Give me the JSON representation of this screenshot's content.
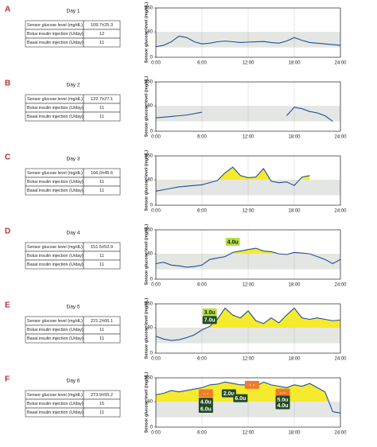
{
  "chart_data": [
    {
      "type": "line",
      "panel": "A",
      "title": "Day 1",
      "table": [
        [
          "Sensor glucose level (mg/dL)",
          "109.7±25.3"
        ],
        [
          "Bolus insulin injection (U/day)",
          "12"
        ],
        [
          "Basal insulin injection (U/day)",
          "11"
        ]
      ],
      "y_label": "Sensor glucose level (mg/dL)",
      "x": [
        0,
        1,
        2,
        3,
        4,
        5,
        6,
        7,
        8,
        9,
        10,
        11,
        12,
        13,
        14,
        15,
        16,
        17,
        18,
        19,
        20,
        21,
        22,
        23,
        24
      ],
      "series": [
        {
          "color": "#1f4e9c",
          "values": [
            75,
            85,
            110,
            150,
            140,
            110,
            95,
            100,
            110,
            115,
            110,
            105,
            108,
            110,
            112,
            105,
            100,
            115,
            140,
            120,
            105,
            100,
            95,
            90,
            85
          ]
        }
      ],
      "xlim": [
        0,
        24
      ],
      "xticks": [
        {
          "value": 0,
          "label": "0:00"
        },
        {
          "value": 6,
          "label": "6:00"
        },
        {
          "value": 12,
          "label": "12:00"
        },
        {
          "value": 18,
          "label": "18:00"
        },
        {
          "value": 24,
          "label": "24:00"
        }
      ],
      "ylim": [
        0,
        350
      ],
      "yticks": [
        0,
        180,
        350
      ],
      "target_range": [
        70,
        180
      ],
      "fill_above_target": false,
      "annotations": []
    },
    {
      "type": "line",
      "panel": "B",
      "title": "Day 2",
      "table": [
        [
          "Sensor glucose level (mg/dL)",
          "122.7±27.1"
        ],
        [
          "Bolus insulin injection (U/day)",
          "11"
        ],
        [
          "Basal insulin injection (U/day)",
          "11"
        ]
      ],
      "y_label": "Sensor glucose level (mg/dL)",
      "x": [
        0,
        1,
        2,
        3,
        4,
        5,
        6,
        7,
        8,
        9,
        10,
        11,
        12,
        13,
        14,
        15,
        16,
        17,
        18,
        19,
        20,
        21,
        22,
        23,
        24
      ],
      "series": [
        {
          "color": "#1f4e9c",
          "values": [
            95,
            100,
            105,
            110,
            115,
            125,
            135,
            null,
            null,
            null,
            null,
            null,
            null,
            null,
            null,
            null,
            null,
            110,
            170,
            160,
            140,
            130,
            110,
            70,
            null
          ]
        }
      ],
      "xlim": [
        0,
        24
      ],
      "xticks": [
        {
          "value": 0,
          "label": "0:00"
        },
        {
          "value": 6,
          "label": "6:00"
        },
        {
          "value": 12,
          "label": "12:00"
        },
        {
          "value": 18,
          "label": "18:00"
        },
        {
          "value": 24,
          "label": "24:00"
        }
      ],
      "ylim": [
        0,
        350
      ],
      "yticks": [
        0,
        180,
        350
      ],
      "target_range": [
        70,
        180
      ],
      "fill_above_target": false,
      "annotations": []
    },
    {
      "type": "line",
      "panel": "C",
      "title": "Day 3",
      "table": [
        [
          "Sensor glucose level (mg/dL)",
          "166.0±45.6"
        ],
        [
          "Bolus insulin injection (U/day)",
          "11"
        ],
        [
          "Basal insulin injection (U/day)",
          "11"
        ]
      ],
      "y_label": "Sensor glucose level (mg/dL)",
      "x": [
        0,
        1,
        2,
        3,
        4,
        5,
        6,
        7,
        8,
        9,
        10,
        11,
        12,
        13,
        14,
        15,
        16,
        17,
        18,
        19,
        20,
        21,
        22,
        23,
        24
      ],
      "series": [
        {
          "color": "#1f4e9c",
          "values": [
            100,
            110,
            120,
            130,
            135,
            140,
            145,
            160,
            175,
            230,
            270,
            210,
            195,
            200,
            260,
            170,
            160,
            165,
            140,
            200,
            210,
            null,
            null,
            null,
            null
          ]
        }
      ],
      "xlim": [
        0,
        24
      ],
      "xticks": [
        {
          "value": 0,
          "label": "0:00"
        },
        {
          "value": 6,
          "label": "6:00"
        },
        {
          "value": 12,
          "label": "12:00"
        },
        {
          "value": 18,
          "label": "18:00"
        },
        {
          "value": 24,
          "label": "24:00"
        }
      ],
      "ylim": [
        0,
        350
      ],
      "yticks": [
        0,
        180,
        350
      ],
      "target_range": [
        70,
        180
      ],
      "fill_above_target": true,
      "annotations": []
    },
    {
      "type": "line",
      "panel": "D",
      "title": "Day 4",
      "table": [
        [
          "Sensor glucose level (mg/dL)",
          "151.5±52.9"
        ],
        [
          "Bolus insulin injection (U/day)",
          "11"
        ],
        [
          "Basal insulin injection (U/day)",
          "11"
        ]
      ],
      "y_label": "Sensor glucose level (mg/dL)",
      "x": [
        0,
        1,
        2,
        3,
        4,
        5,
        6,
        7,
        8,
        9,
        10,
        11,
        12,
        13,
        14,
        15,
        16,
        17,
        18,
        19,
        20,
        21,
        22,
        23,
        24
      ],
      "series": [
        {
          "color": "#1f4e9c",
          "values": [
            110,
            120,
            100,
            95,
            85,
            90,
            100,
            140,
            150,
            160,
            190,
            200,
            210,
            220,
            200,
            195,
            180,
            175,
            190,
            185,
            180,
            160,
            140,
            110,
            140
          ]
        }
      ],
      "xlim": [
        0,
        24
      ],
      "xticks": [
        {
          "value": 0,
          "label": "0:00"
        },
        {
          "value": 6,
          "label": "6:00"
        },
        {
          "value": 12,
          "label": "12:00"
        },
        {
          "value": 18,
          "label": "18:00"
        },
        {
          "value": 24,
          "label": "24:00"
        }
      ],
      "ylim": [
        0,
        350
      ],
      "yticks": [
        0,
        180,
        350
      ],
      "target_range": [
        70,
        180
      ],
      "fill_above_target": true,
      "annotations": [
        {
          "text": "4.0u",
          "x": 10,
          "y": 265,
          "style": "light"
        }
      ]
    },
    {
      "type": "line",
      "panel": "E",
      "title": "Day 5",
      "table": [
        [
          "Sensor glucose level (mg/dL)",
          "221.2±66.1"
        ],
        [
          "Bolus insulin injection (U/day)",
          "11"
        ],
        [
          "Basal insulin injection (U/day)",
          "11"
        ]
      ],
      "y_label": "Sensor glucose level (mg/dL)",
      "x": [
        0,
        1,
        2,
        3,
        4,
        5,
        6,
        7,
        8,
        9,
        10,
        11,
        12,
        13,
        14,
        15,
        16,
        17,
        18,
        19,
        20,
        21,
        22,
        23,
        24
      ],
      "series": [
        {
          "color": "#1f4e9c",
          "values": [
            120,
            100,
            90,
            95,
            110,
            130,
            165,
            190,
            240,
            320,
            270,
            250,
            300,
            230,
            210,
            250,
            215,
            270,
            320,
            250,
            240,
            250,
            240,
            230,
            235
          ]
        }
      ],
      "xlim": [
        0,
        24
      ],
      "xticks": [
        {
          "value": 0,
          "label": "0:00"
        },
        {
          "value": 6,
          "label": "6:00"
        },
        {
          "value": 12,
          "label": "12:00"
        },
        {
          "value": 18,
          "label": "18:00"
        },
        {
          "value": 24,
          "label": "24:00"
        }
      ],
      "ylim": [
        0,
        350
      ],
      "yticks": [
        0,
        180,
        350
      ],
      "target_range": [
        70,
        180
      ],
      "fill_above_target": true,
      "annotations": [
        {
          "text": "3.0u",
          "x": 7,
          "y": 290,
          "style": "light"
        },
        {
          "text": "7.0u",
          "x": 7,
          "y": 235,
          "style": "dark"
        }
      ]
    },
    {
      "type": "line",
      "panel": "F",
      "title": "Day 6",
      "table": [
        [
          "Sensor glucose level (mg/dL)",
          "273.9±55.2"
        ],
        [
          "Bolus insulin injection (U/day)",
          "15"
        ],
        [
          "Basal insulin injection (U/day)",
          "11"
        ]
      ],
      "y_label": "Sensor glucose level (mg/dL)",
      "x": [
        0,
        1,
        2,
        3,
        4,
        5,
        6,
        7,
        8,
        9,
        10,
        11,
        12,
        13,
        14,
        15,
        16,
        17,
        18,
        19,
        20,
        21,
        22,
        23,
        24
      ],
      "series": [
        {
          "color": "#1f4e9c",
          "values": [
            230,
            240,
            260,
            250,
            260,
            270,
            280,
            300,
            305,
            320,
            310,
            300,
            300,
            290,
            320,
            300,
            290,
            280,
            300,
            290,
            310,
            280,
            250,
            110,
            100
          ]
        }
      ],
      "xlim": [
        0,
        24
      ],
      "xticks": [
        {
          "value": 0,
          "label": "0:00"
        },
        {
          "value": 6,
          "label": "6:00"
        },
        {
          "value": 12,
          "label": "12:00"
        },
        {
          "value": 18,
          "label": "18:00"
        },
        {
          "value": 24,
          "label": "24:00"
        }
      ],
      "ylim": [
        0,
        350
      ],
      "yticks": [
        0,
        180,
        350
      ],
      "target_range": [
        70,
        180
      ],
      "fill_above_target": true,
      "annotations": [
        {
          "text": "- -",
          "x": 6.5,
          "y": 240,
          "style": "orange"
        },
        {
          "text": "4.0u",
          "x": 6.5,
          "y": 180,
          "style": "dark"
        },
        {
          "text": "6.0u",
          "x": 6.5,
          "y": 130,
          "style": "dark"
        },
        {
          "text": "2.0u",
          "x": 9.5,
          "y": 240,
          "style": "dark"
        },
        {
          "text": "6.0u",
          "x": 11,
          "y": 205,
          "style": "dark"
        },
        {
          "text": "- -",
          "x": 12.5,
          "y": 300,
          "style": "orange"
        },
        {
          "text": "- -",
          "x": 16.5,
          "y": 245,
          "style": "orange"
        },
        {
          "text": "5.0u",
          "x": 16.5,
          "y": 195,
          "style": "dark"
        },
        {
          "text": "4.0u",
          "x": 16.5,
          "y": 155,
          "style": "dark"
        }
      ]
    }
  ]
}
